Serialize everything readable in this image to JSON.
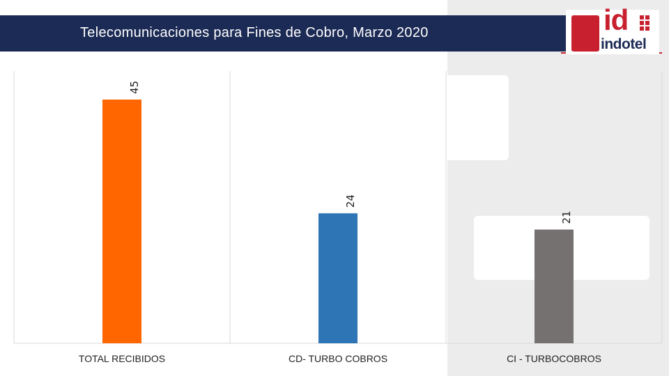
{
  "header": {
    "title": "Telecomunicaciones para Fines de Cobro, Marzo 2020"
  },
  "logo": {
    "mark": "id",
    "name": "indotel",
    "brand_color": "#c8202f",
    "navy_color": "#1c2b55"
  },
  "chart_data": {
    "type": "bar",
    "title": "",
    "xlabel": "",
    "ylabel": "",
    "categories": [
      "TOTAL RECIBIDOS",
      "CD- TURBO COBROS",
      "CI - TURBOCOBROS"
    ],
    "values": [
      45,
      24,
      21
    ],
    "data_labels": [
      "45",
      "24",
      "21"
    ],
    "colors": [
      "#ff6600",
      "#2e75b6",
      "#767171"
    ],
    "ylim": [
      0,
      50
    ],
    "grid": false,
    "legend": "none"
  }
}
